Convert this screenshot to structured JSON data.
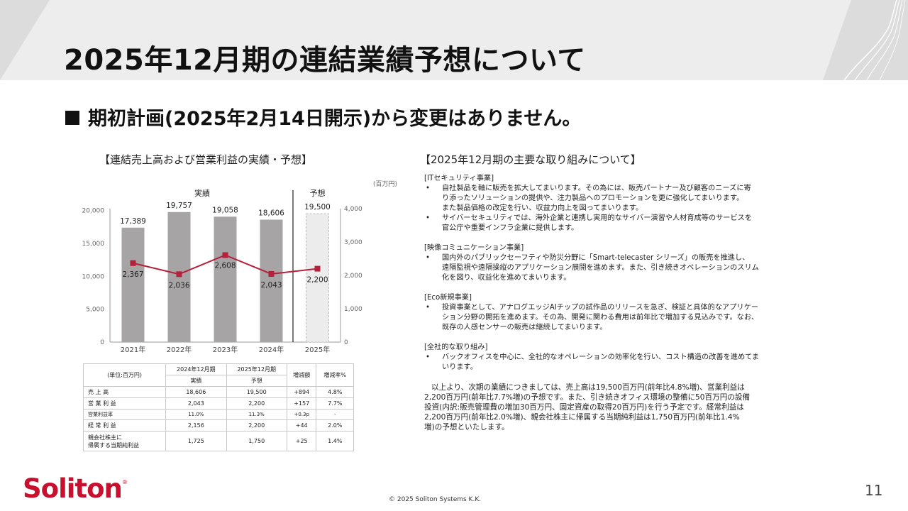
{
  "header": {
    "title": "2025年12月期の連結業績予想について"
  },
  "subtitle": "期初計画(2025年2月14日開示)から変更はありません。",
  "chart_title": "【連結売上高および営業利益の実績・予想】",
  "right_title": "【2025年12月期の主要な取り組みについて】",
  "chart_data": {
    "type": "bar",
    "unit": "(百万円)",
    "group_labels": [
      "実績",
      "予想"
    ],
    "categories": [
      "2021年",
      "2022年",
      "2023年",
      "2024年",
      "2025年"
    ],
    "y_left_ticks": [
      "0",
      "5,000",
      "10,000",
      "15,000",
      "20,000"
    ],
    "y_left_range": [
      0,
      22000
    ],
    "y_right_ticks": [
      "0",
      "1,000",
      "2,000",
      "3,000",
      "4,000"
    ],
    "y_right_range": [
      0,
      4000
    ],
    "sales_values": [
      17389,
      19757,
      19058,
      18606,
      19500
    ],
    "sales_labels": [
      "17,389",
      "19,757",
      "19,058",
      "18,606",
      "19,500"
    ],
    "op_values": [
      2367,
      2036,
      2608,
      2043,
      2200
    ],
    "op_labels": [
      "2,367",
      "2,036",
      "2,608",
      "2,043",
      "2,200"
    ],
    "bar_color": "#a6a4a4",
    "forecast_color": "#ececec",
    "line_color": "#b5203b"
  },
  "table": {
    "header": [
      "(単位:百万円)",
      "2024年12月期",
      "2025年12月期",
      "増減額",
      "増減率%"
    ],
    "subheader": [
      "実績",
      "予想"
    ],
    "rows": [
      {
        "label": "売 上 高",
        "v1": "18,606",
        "v2": "19,500",
        "diff": "+894",
        "rate": "4.8%"
      },
      {
        "label": "営 業 利 益",
        "v1": "2,043",
        "v2": "2,200",
        "diff": "+157",
        "rate": "7.7%"
      },
      {
        "label": "営業利益率",
        "v1": "11.0%",
        "v2": "11.3%",
        "diff": "+0.3p",
        "rate": "-"
      },
      {
        "label": "経 常 利 益",
        "v1": "2,156",
        "v2": "2,200",
        "diff": "+44",
        "rate": "2.0%"
      },
      {
        "label1": "親会社株主に",
        "label2": "帰属する当期純利益",
        "v1": "1,725",
        "v2": "1,750",
        "diff": "+25",
        "rate": "1.4%"
      }
    ]
  },
  "sections": [
    {
      "head": "[ITセキュリティ事業]",
      "bullets": [
        [
          "自社製品を軸に販売を拡大してまいります。その為には、販売パートナー及び顧客のニーズに寄",
          "り添ったソリューションの提供や、注力製品へのプロモーションを更に強化してまいります。",
          "また製品価格の改定を行い、収益力向上を図ってまいります。"
        ],
        [
          "サイバーセキュリティでは、海外企業と連携し実用的なサイバー演習や人材育成等のサービスを",
          "官公庁や重要インフラ企業に提供します。"
        ]
      ]
    },
    {
      "head": "[映像コミュニケーション事業]",
      "bullets": [
        [
          "国内外のパブリックセーフティや防災分野に「Smart-telecaster シリーズ」の販売を推進し、",
          "遠隔監視や遠隔操縦のアプリケーション展開を進めます。また、引き続きオペレーションのスリム",
          "化を図り、収益化を進めてまいります。"
        ]
      ]
    },
    {
      "head": "[Eco新規事業]",
      "bullets": [
        [
          "投資事業として、アナログエッジAIチップの試作品のリリースを急ぎ、検証と具体的なアプリケー",
          "ション分野の開拓を進めます。その為、開発に関わる費用は前年比で増加する見込みです。なお、",
          "既存の人感センサーの販売は継続してまいります。"
        ]
      ]
    },
    {
      "head": "[全社的な取り組み]",
      "bullets": [
        [
          "バックオフィスを中心に、全社的なオペレーションの効率化を行い、コスト構造の改善を進めてま",
          "いります。"
        ]
      ]
    }
  ],
  "summary": [
    "以上より、次期の業績につきましては、売上高は19,500百万円(前年比4.8%増)、営業利益は",
    "2,200百万円(前年比7.7%増)の予想です。また、引き続きオフィス環境の整備に50百万円の設備",
    "投資(内訳:販売管理費の増加30百万円、固定資産の取得20百万円)を行う予定です。経常利益は",
    "2,200百万円(前年比2.0%増)、親会社株主に帰属する当期純利益は1,750百万円(前年比1.4%",
    "増)の予想といたします。"
  ],
  "bullet_char": "•",
  "footer": {
    "logo": "Soliton",
    "logo_mark": "®",
    "copyright": "© 2025 Soliton Systems K.K.",
    "page": "11"
  }
}
